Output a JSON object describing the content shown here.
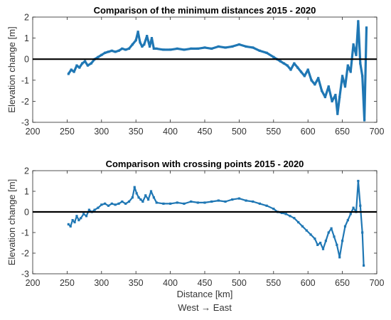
{
  "chart_data": [
    {
      "type": "scatter",
      "title": "Comparison of the minimum distances 2015 - 2020",
      "ylabel": "Elevation change [m]",
      "xlabel": "",
      "xlim": [
        200,
        700
      ],
      "ylim": [
        -3,
        2
      ],
      "xticks": [
        "200",
        "250",
        "300",
        "350",
        "400",
        "450",
        "500",
        "550",
        "600",
        "650",
        "700"
      ],
      "yticks": [
        "-3",
        "-2",
        "-1",
        "0",
        "1",
        "2"
      ],
      "reference_line_y": 0,
      "grid": false,
      "color": "#1f77b4",
      "series": [
        {
          "x": [
            252,
            256,
            260,
            264,
            268,
            272,
            276,
            280,
            285,
            290,
            295,
            300,
            305,
            310,
            315,
            320,
            325,
            330,
            335,
            340,
            345,
            350,
            353,
            356,
            359,
            362,
            366,
            370,
            373,
            376,
            380,
            390,
            400,
            410,
            420,
            430,
            440,
            450,
            460,
            470,
            480,
            490,
            500,
            510,
            520,
            530,
            540,
            550,
            555,
            560,
            565,
            570,
            575,
            580,
            585,
            590,
            595,
            600,
            605,
            610,
            615,
            620,
            625,
            630,
            635,
            640,
            643,
            646,
            650,
            654,
            658,
            662,
            666,
            670,
            673,
            676,
            679,
            682,
            685
          ],
          "y": [
            -0.7,
            -0.5,
            -0.6,
            -0.3,
            -0.4,
            -0.2,
            -0.1,
            -0.3,
            -0.2,
            0.0,
            0.1,
            0.2,
            0.3,
            0.35,
            0.4,
            0.35,
            0.4,
            0.5,
            0.45,
            0.5,
            0.7,
            0.9,
            1.3,
            0.8,
            0.6,
            0.7,
            1.1,
            0.6,
            1.0,
            0.5,
            0.5,
            0.45,
            0.45,
            0.5,
            0.45,
            0.5,
            0.5,
            0.55,
            0.5,
            0.6,
            0.55,
            0.6,
            0.7,
            0.6,
            0.55,
            0.4,
            0.3,
            0.1,
            0.0,
            -0.1,
            -0.2,
            -0.3,
            -0.5,
            -0.2,
            -0.4,
            -0.6,
            -0.8,
            -0.5,
            -1.0,
            -1.2,
            -0.9,
            -1.5,
            -1.8,
            -1.3,
            -2.0,
            -1.7,
            -2.6,
            -1.8,
            -0.8,
            -1.3,
            -0.3,
            -0.6,
            0.7,
            0.2,
            1.8,
            -0.2,
            -0.8,
            -2.9,
            1.5
          ]
        }
      ]
    },
    {
      "type": "scatter",
      "title": "Comparison with crossing points 2015 - 2020",
      "ylabel": "Elevation change [m]",
      "xlabel": "Distance [km]",
      "x_direction_label": "West → East",
      "xlim": [
        200,
        700
      ],
      "ylim": [
        -3,
        2
      ],
      "xticks": [
        "200",
        "250",
        "300",
        "350",
        "400",
        "450",
        "500",
        "550",
        "600",
        "650",
        "700"
      ],
      "yticks": [
        "-3",
        "-2",
        "-1",
        "0",
        "1",
        "2"
      ],
      "reference_line_y": 0,
      "grid": false,
      "color": "#1f77b4",
      "series": [
        {
          "x": [
            252,
            255,
            258,
            261,
            264,
            267,
            270,
            274,
            278,
            282,
            286,
            290,
            295,
            300,
            305,
            310,
            315,
            320,
            325,
            330,
            335,
            340,
            345,
            348,
            351,
            354,
            357,
            360,
            364,
            368,
            372,
            376,
            380,
            390,
            400,
            410,
            420,
            430,
            440,
            450,
            460,
            470,
            480,
            490,
            500,
            510,
            520,
            530,
            540,
            550,
            556,
            562,
            568,
            574,
            580,
            586,
            592,
            598,
            604,
            610,
            614,
            618,
            622,
            626,
            630,
            634,
            638,
            642,
            646,
            650,
            654,
            658,
            662,
            666,
            670,
            673,
            676,
            679,
            681
          ],
          "y": [
            -0.6,
            -0.7,
            -0.4,
            -0.5,
            -0.2,
            -0.4,
            -0.3,
            -0.1,
            -0.2,
            0.1,
            0.0,
            0.1,
            0.2,
            0.35,
            0.4,
            0.3,
            0.4,
            0.35,
            0.4,
            0.5,
            0.4,
            0.5,
            0.7,
            1.2,
            0.9,
            0.7,
            0.6,
            0.5,
            0.8,
            0.6,
            1.0,
            0.7,
            0.45,
            0.4,
            0.4,
            0.45,
            0.4,
            0.5,
            0.45,
            0.45,
            0.5,
            0.55,
            0.5,
            0.6,
            0.65,
            0.55,
            0.5,
            0.4,
            0.3,
            0.15,
            0.0,
            -0.05,
            -0.1,
            -0.2,
            -0.3,
            -0.5,
            -0.7,
            -0.9,
            -1.1,
            -1.3,
            -1.6,
            -1.5,
            -1.8,
            -1.4,
            -1.0,
            -0.8,
            -1.2,
            -1.6,
            -2.2,
            -1.4,
            -0.7,
            -0.4,
            -0.1,
            0.2,
            0.0,
            1.5,
            0.3,
            -1.0,
            -2.6
          ]
        }
      ]
    }
  ]
}
